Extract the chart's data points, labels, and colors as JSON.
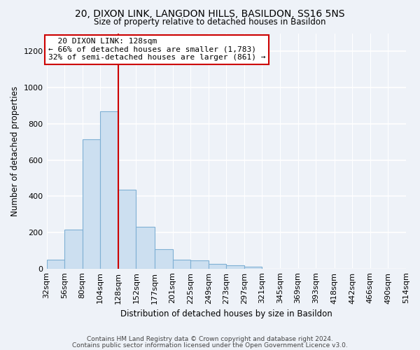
{
  "title_line1": "20, DIXON LINK, LANGDON HILLS, BASILDON, SS16 5NS",
  "title_line2": "Size of property relative to detached houses in Basildon",
  "xlabel": "Distribution of detached houses by size in Basildon",
  "ylabel": "Number of detached properties",
  "annotation_line1": "20 DIXON LINK: 128sqm",
  "annotation_line2": "← 66% of detached houses are smaller (1,783)",
  "annotation_line3": "32% of semi-detached houses are larger (861) →",
  "bar_color": "#ccdff0",
  "bar_edgecolor": "#7fb0d4",
  "redline_color": "#cc0000",
  "background_color": "#eef2f8",
  "bins": [
    32,
    56,
    80,
    104,
    128,
    152,
    177,
    201,
    225,
    249,
    273,
    297,
    321,
    345,
    369,
    393,
    418,
    442,
    466,
    490,
    514
  ],
  "bin_labels": [
    "32sqm",
    "56sqm",
    "80sqm",
    "104sqm",
    "128sqm",
    "152sqm",
    "177sqm",
    "201sqm",
    "225sqm",
    "249sqm",
    "273sqm",
    "297sqm",
    "321sqm",
    "345sqm",
    "369sqm",
    "393sqm",
    "418sqm",
    "442sqm",
    "466sqm",
    "490sqm",
    "514sqm"
  ],
  "values": [
    50,
    215,
    715,
    870,
    435,
    232,
    107,
    48,
    45,
    25,
    18,
    12,
    0,
    0,
    0,
    0,
    0,
    0,
    0,
    0
  ],
  "ylim": [
    0,
    1300
  ],
  "yticks": [
    0,
    200,
    400,
    600,
    800,
    1000,
    1200
  ],
  "footnote1": "Contains HM Land Registry data © Crown copyright and database right 2024.",
  "footnote2": "Contains public sector information licensed under the Open Government Licence v3.0."
}
